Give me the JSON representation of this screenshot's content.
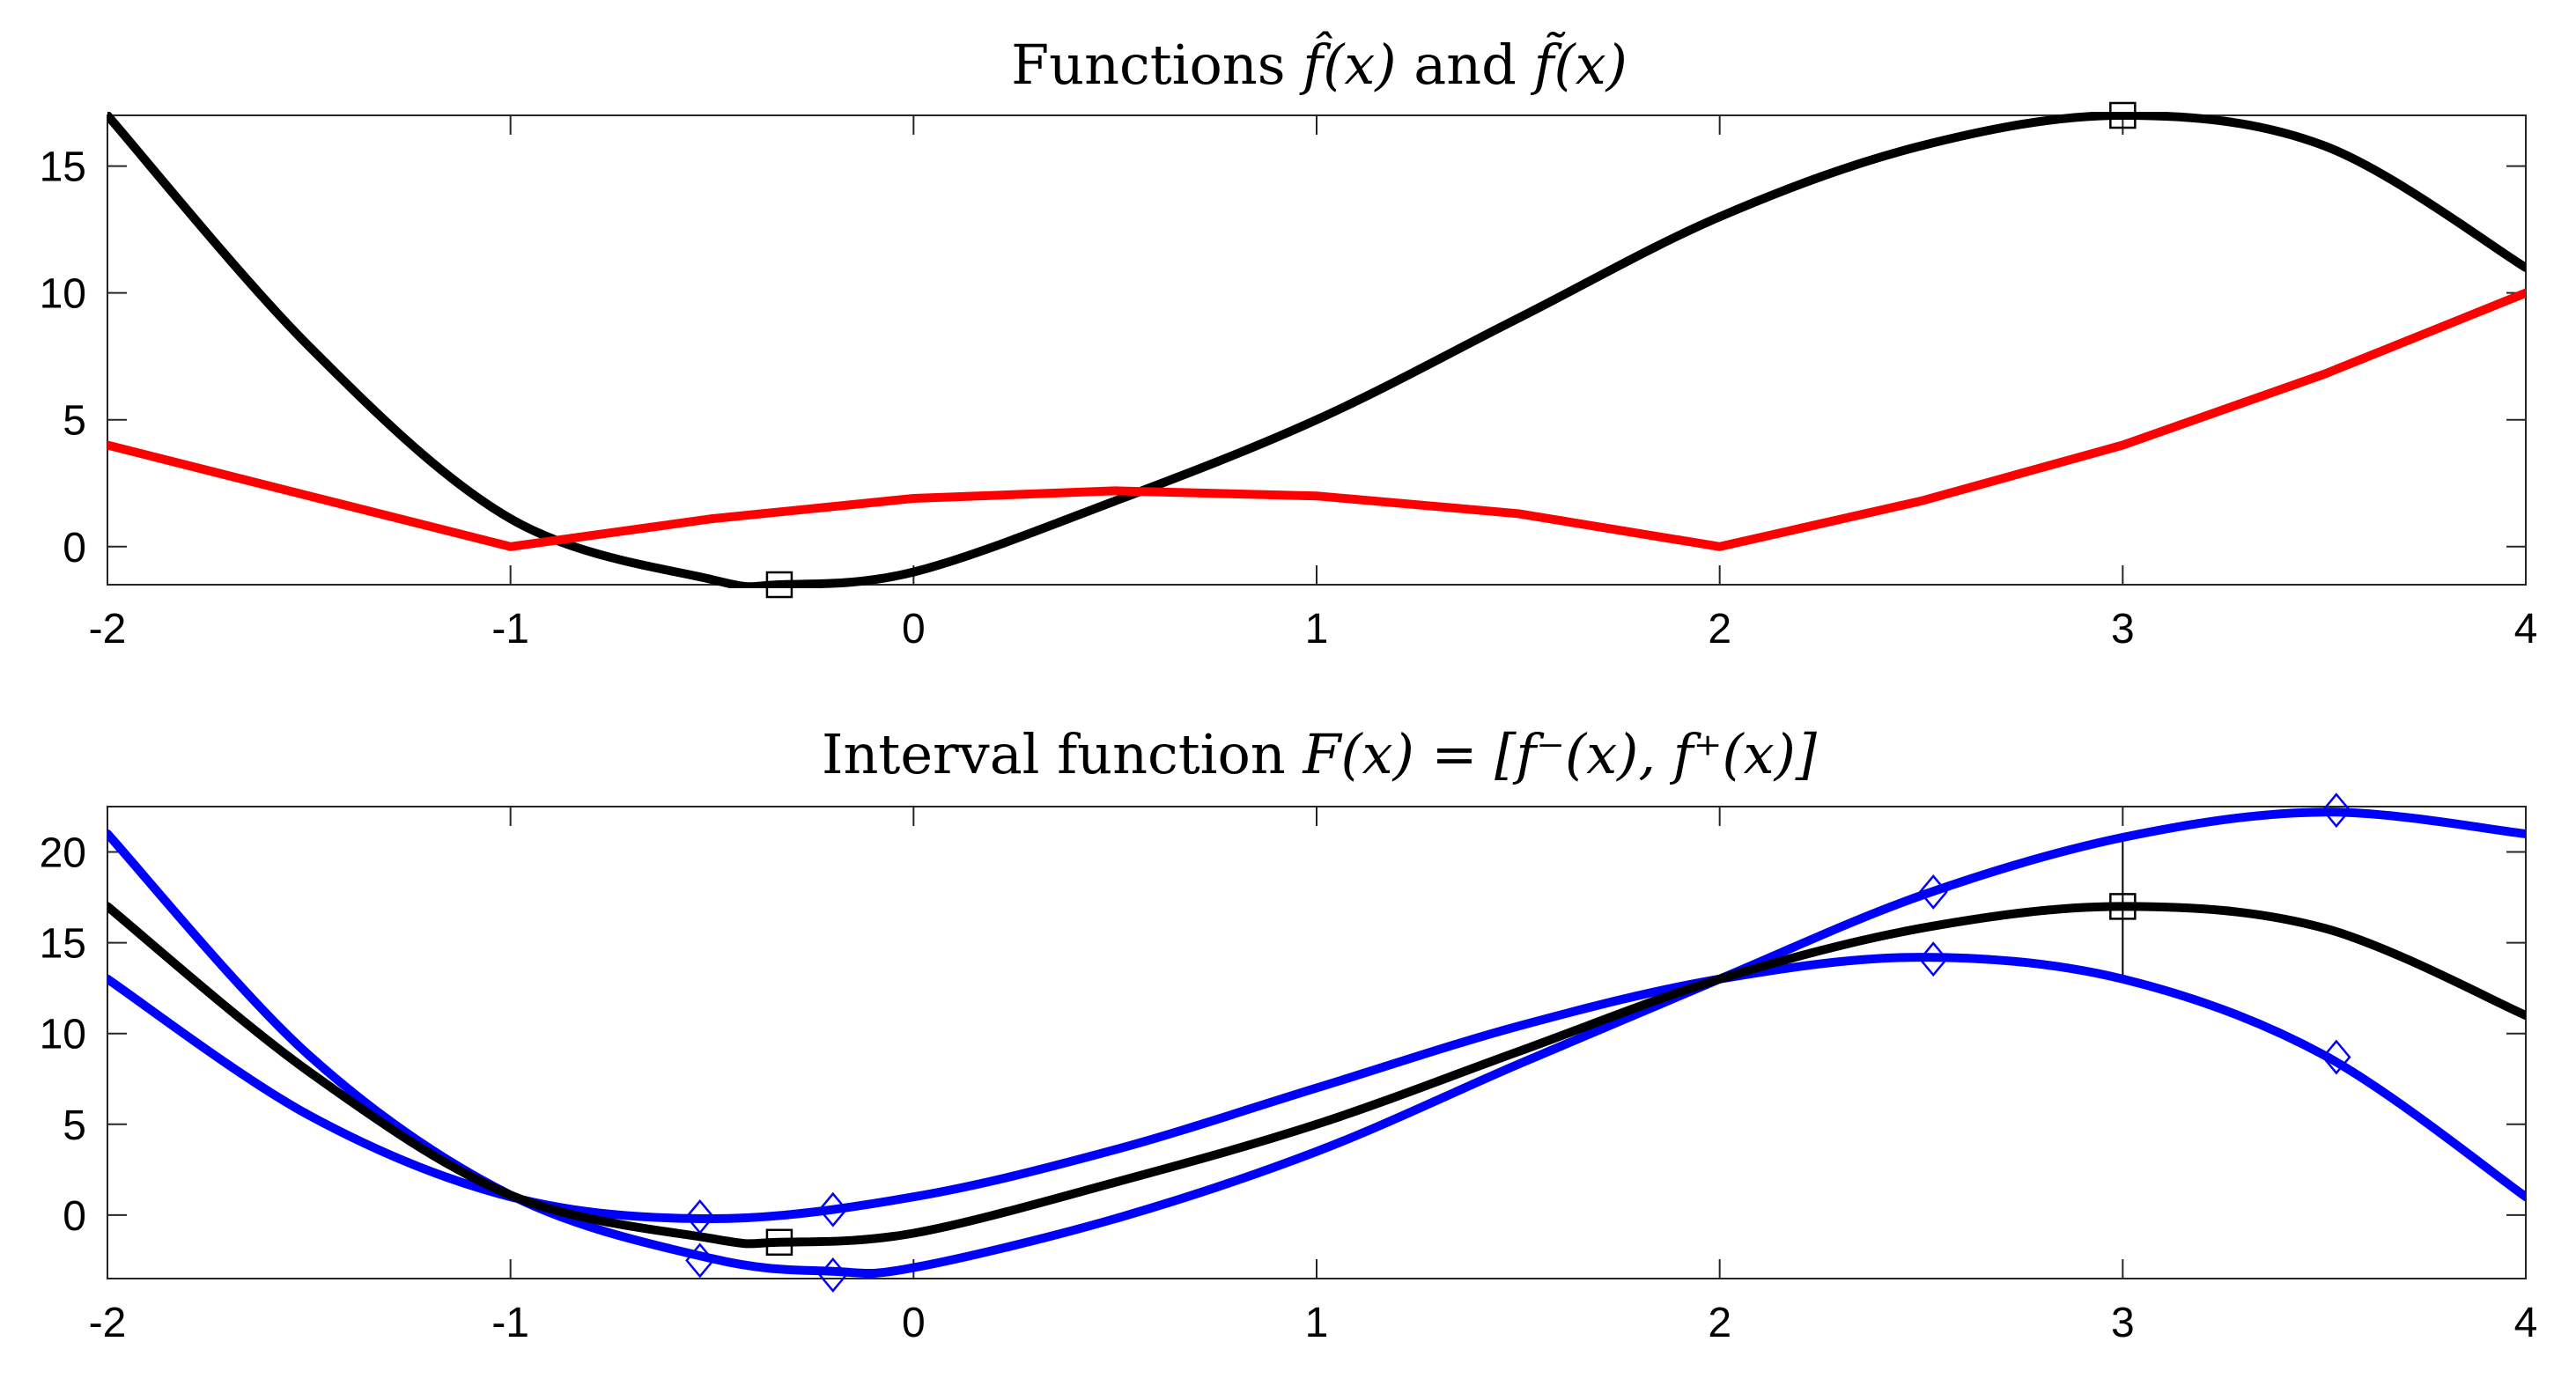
{
  "chart_data": [
    {
      "type": "line",
      "title_parts": [
        "Functions ",
        "f̂(x)",
        " and ",
        "f̃(x)"
      ],
      "xlabel": "",
      "ylabel": "",
      "xlim": [
        -2,
        4
      ],
      "ylim": [
        -1.5,
        17
      ],
      "x_ticks": [
        "-2",
        "-1",
        "0",
        "1",
        "2",
        "3",
        "4"
      ],
      "y_ticks": [
        "0",
        "5",
        "10",
        "15"
      ],
      "grid": false,
      "series": [
        {
          "color": "#000000",
          "marker": "square",
          "x": [
            -2,
            -1.5,
            -1,
            -0.5,
            -0.333,
            0,
            0.5,
            1,
            1.5,
            2,
            2.5,
            3,
            3.5,
            4
          ],
          "y": [
            17,
            7.9,
            1.1,
            -1.3,
            -1.5,
            -1,
            1.8,
            5,
            9,
            13,
            15.8,
            17,
            15.8,
            11
          ],
          "markers": [
            {
              "x": -0.333,
              "y": -1.5
            },
            {
              "x": 3,
              "y": 17
            }
          ]
        },
        {
          "color": "#ff0000",
          "marker": "none",
          "x": [
            -2,
            -1.5,
            -1,
            -0.5,
            0,
            0.5,
            1,
            1.5,
            2,
            2.5,
            3,
            3.5,
            4
          ],
          "y": [
            4,
            2,
            0,
            1.1,
            1.9,
            2.2,
            2,
            1.3,
            0,
            1.8,
            4,
            6.8,
            10
          ],
          "markers": []
        }
      ]
    },
    {
      "type": "line",
      "title_parts": [
        "Interval function ",
        "F(x) = [f⁻(x), f⁺(x)]"
      ],
      "xlabel": "",
      "ylabel": "",
      "xlim": [
        -2,
        4
      ],
      "ylim": [
        -3.5,
        22.5
      ],
      "x_ticks": [
        "-2",
        "-1",
        "0",
        "1",
        "2",
        "3",
        "4"
      ],
      "y_ticks": [
        "0",
        "5",
        "10",
        "15",
        "20"
      ],
      "grid": false,
      "series": [
        {
          "color": "#0000ff",
          "marker": "diamond",
          "x": [
            -2,
            -1.5,
            -1,
            -0.5,
            -0.2,
            0,
            0.5,
            1,
            1.5,
            2,
            2.5,
            3,
            3.5,
            4
          ],
          "y": [
            21,
            8.8,
            1.1,
            -2.4,
            -3.1,
            -2.9,
            -0.2,
            3.5,
            8.3,
            13,
            17.6,
            20.8,
            22.2,
            21
          ],
          "markers": [
            {
              "x": -0.53,
              "y": -2.5
            },
            {
              "x": -0.2,
              "y": -3.3
            },
            {
              "x": 2.53,
              "y": 17.8
            },
            {
              "x": 3.53,
              "y": 22.3
            }
          ]
        },
        {
          "color": "#0000ff",
          "marker": "diamond",
          "x": [
            -2,
            -1.5,
            -1,
            -0.5,
            0,
            0.5,
            1,
            1.5,
            2,
            2.5,
            3,
            3.5,
            4
          ],
          "y": [
            13,
            5.5,
            1,
            -0.2,
            1,
            3.6,
            7,
            10.4,
            13,
            14.2,
            13,
            8.8,
            1
          ],
          "markers": [
            {
              "x": -0.53,
              "y": -0.1
            },
            {
              "x": -0.2,
              "y": 0.3
            },
            {
              "x": 2.53,
              "y": 14.1
            },
            {
              "x": 3.53,
              "y": 8.7
            }
          ]
        },
        {
          "color": "#000000",
          "marker": "square",
          "x": [
            -2,
            -1.5,
            -1,
            -0.5,
            -0.333,
            0,
            0.5,
            1,
            1.5,
            2,
            2.5,
            3,
            3.5,
            4
          ],
          "y": [
            17,
            7.9,
            1.1,
            -1.3,
            -1.5,
            -1,
            1.8,
            5,
            9,
            13,
            15.8,
            17,
            15.8,
            11
          ],
          "markers": [
            {
              "x": -0.333,
              "y": -1.5
            },
            {
              "x": 3,
              "y": 17
            }
          ]
        }
      ],
      "error_bar": {
        "x": 3,
        "y_low": 13,
        "y_high": 20.8
      }
    }
  ]
}
